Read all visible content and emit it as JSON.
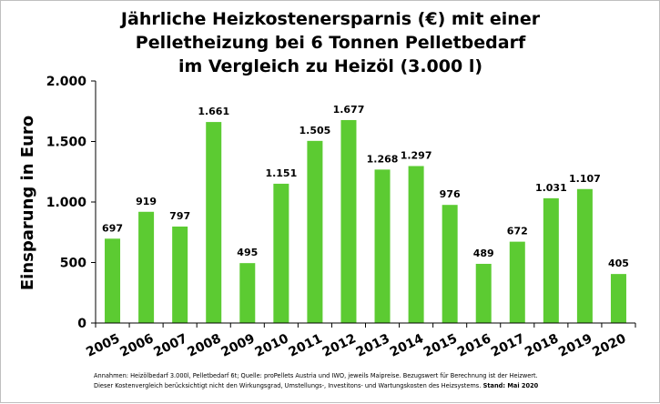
{
  "chart_data": {
    "type": "bar",
    "title": [
      "Jährliche Heizkostenersparnis (€) mit einer",
      "Pelletheizung bei 6 Tonnen Pelletbedarf",
      "im Vergleich zu Heizöl (3.000 l)"
    ],
    "ylabel": "Einsparung in Euro",
    "xlabel": "",
    "ylim": [
      0,
      2000
    ],
    "yticks": [
      0,
      500,
      1000,
      1500,
      2000
    ],
    "ytick_labels": [
      "0",
      "500",
      "1.000",
      "1.500",
      "2.000"
    ],
    "categories": [
      "2005",
      "2006",
      "2007",
      "2008",
      "2009",
      "2010",
      "2011",
      "2012",
      "2013",
      "2014",
      "2015",
      "2016",
      "2017",
      "2018",
      "2019",
      "2020"
    ],
    "values": [
      697,
      919,
      797,
      1661,
      495,
      1151,
      1505,
      1677,
      1268,
      1297,
      976,
      489,
      672,
      1031,
      1107,
      405
    ],
    "value_labels": [
      "697",
      "919",
      "797",
      "1.661",
      "495",
      "1.151",
      "1.505",
      "1.677",
      "1.268",
      "1.297",
      "976",
      "489",
      "672",
      "1.031",
      "1.107",
      "405"
    ],
    "bar_color": "#5ccb32",
    "grid": false,
    "legend": "none"
  },
  "footnote": {
    "line1": "Annahmen: Heizölbedarf 3.000l, Pelletbedarf 6t; Quelle: proPellets Austria und IWO, jeweils Maipreise. Bezugswert für Berechnung ist der Heizwert.",
    "line2": "Dieser Kostenvergleich berücksichtigt nicht den Wirkungsgrad, Umstellungs-, Investitons- und Wartungskosten des Heizsystems.",
    "line2_bold": " Stand: Mai 2020"
  }
}
